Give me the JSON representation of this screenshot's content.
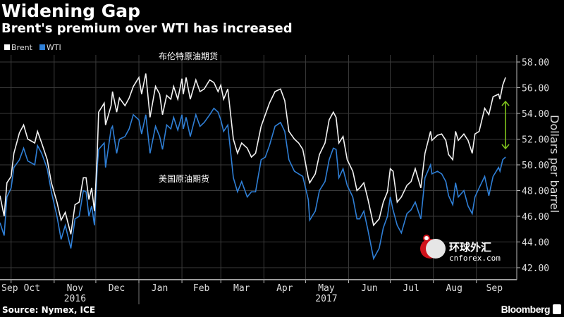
{
  "header": {
    "title": "Widening Gap",
    "subtitle": "Brent's premium over WTI has increased"
  },
  "footer": {
    "source": "Source: Nymex, ICE",
    "brand": "Bloomberg"
  },
  "annotations": {
    "brent_cn": "布伦特原油期货",
    "wti_cn": "美国原油期货"
  },
  "watermark": {
    "cn": "环球外汇",
    "en": "cnforex.com"
  },
  "colors": {
    "brent": "#ffffff",
    "wti": "#2f7fd6",
    "gap_arrow": "#7fc31c",
    "grid": "#3a3a3a",
    "background": "#000000"
  },
  "chart_data": {
    "type": "line",
    "title": "Widening Gap",
    "subtitle": "Brent's premium over WTI has increased",
    "ylabel": "Dollars per barrel",
    "xlabel": "",
    "ylim": [
      42,
      58
    ],
    "y_ticks": [
      "42.00",
      "44.00",
      "46.00",
      "48.00",
      "50.00",
      "52.00",
      "54.00",
      "56.00",
      "58.00"
    ],
    "y_axis_side": "right",
    "x_ticks": [
      "Sep",
      "Oct",
      "Nov",
      "Dec",
      "Jan",
      "Feb",
      "Mar",
      "Apr",
      "May",
      "Jun",
      "Jul",
      "Aug",
      "Sep"
    ],
    "x_years": [
      "2016",
      "2017"
    ],
    "xlim": [
      "2016-09-23",
      "2017-09-22"
    ],
    "grid": true,
    "legend": "top-left",
    "x": [
      "2016-09-23",
      "2016-09-26",
      "2016-09-28",
      "2016-10-01",
      "2016-10-03",
      "2016-10-07",
      "2016-10-10",
      "2016-10-13",
      "2016-10-18",
      "2016-10-20",
      "2016-10-23",
      "2016-10-27",
      "2016-10-30",
      "2016-11-03",
      "2016-11-06",
      "2016-11-09",
      "2016-11-13",
      "2016-11-16",
      "2016-11-19",
      "2016-11-22",
      "2016-11-24",
      "2016-11-26",
      "2016-11-28",
      "2016-11-30",
      "2016-12-02",
      "2016-12-03",
      "2016-12-07",
      "2016-12-08",
      "2016-12-12",
      "2016-12-13",
      "2016-12-16",
      "2016-12-18",
      "2016-12-22",
      "2016-12-25",
      "2016-12-28",
      "2017-01-01",
      "2017-01-03",
      "2017-01-06",
      "2017-01-09",
      "2017-01-13",
      "2017-01-16",
      "2017-01-18",
      "2017-01-21",
      "2017-01-24",
      "2017-01-26",
      "2017-01-29",
      "2017-02-01",
      "2017-02-02",
      "2017-02-04",
      "2017-02-07",
      "2017-02-11",
      "2017-02-14",
      "2017-02-17",
      "2017-02-21",
      "2017-02-24",
      "2017-02-27",
      "2017-03-01",
      "2017-03-03",
      "2017-03-06",
      "2017-03-10",
      "2017-03-13",
      "2017-03-16",
      "2017-03-20",
      "2017-03-23",
      "2017-03-26",
      "2017-03-30",
      "2017-04-02",
      "2017-04-05",
      "2017-04-09",
      "2017-04-13",
      "2017-04-16",
      "2017-04-19",
      "2017-04-23",
      "2017-04-26",
      "2017-04-29",
      "2017-05-03",
      "2017-05-04",
      "2017-05-08",
      "2017-05-11",
      "2017-05-15",
      "2017-05-18",
      "2017-05-21",
      "2017-05-23",
      "2017-05-25",
      "2017-05-28",
      "2017-05-31",
      "2017-06-04",
      "2017-06-07",
      "2017-06-09",
      "2017-06-12",
      "2017-06-15",
      "2017-06-19",
      "2017-06-23",
      "2017-06-26",
      "2017-06-29",
      "2017-07-01",
      "2017-07-03",
      "2017-07-06",
      "2017-07-09",
      "2017-07-13",
      "2017-07-16",
      "2017-07-19",
      "2017-07-23",
      "2017-07-26",
      "2017-07-30",
      "2017-07-31",
      "2017-08-04",
      "2017-08-07",
      "2017-08-10",
      "2017-08-12",
      "2017-08-15",
      "2017-08-17",
      "2017-08-19",
      "2017-08-23",
      "2017-08-26",
      "2017-08-29",
      "2017-08-31",
      "2017-09-03",
      "2017-09-07",
      "2017-09-10",
      "2017-09-13",
      "2017-09-17",
      "2017-09-18",
      "2017-09-20",
      "2017-09-22"
    ],
    "series": [
      {
        "name": "Brent",
        "values": [
          47.6,
          46.0,
          48.6,
          49.1,
          50.9,
          52.5,
          53.1,
          52.0,
          51.7,
          52.6,
          51.7,
          50.4,
          48.6,
          47.1,
          45.7,
          46.3,
          44.6,
          46.9,
          47.1,
          49.0,
          49.0,
          47.3,
          48.2,
          46.4,
          50.8,
          54.1,
          54.8,
          53.1,
          54.6,
          55.7,
          54.1,
          55.2,
          54.6,
          55.2,
          56.1,
          56.8,
          55.5,
          57.1,
          53.7,
          56.1,
          55.5,
          53.9,
          55.4,
          55.1,
          56.1,
          55.1,
          56.7,
          55.5,
          56.8,
          55.1,
          56.6,
          55.7,
          55.9,
          56.6,
          56.4,
          55.7,
          56.2,
          55.1,
          55.9,
          52.0,
          50.9,
          51.7,
          51.3,
          50.6,
          50.9,
          53.0,
          53.9,
          54.8,
          55.7,
          55.9,
          55.0,
          52.6,
          52.0,
          51.7,
          51.2,
          49.0,
          48.6,
          49.3,
          50.8,
          51.7,
          53.5,
          54.1,
          53.7,
          51.7,
          52.2,
          50.4,
          49.5,
          48.0,
          48.2,
          48.6,
          47.3,
          45.3,
          45.8,
          47.1,
          47.9,
          49.7,
          49.5,
          47.1,
          47.5,
          48.4,
          48.7,
          49.7,
          48.2,
          50.9,
          52.6,
          51.9,
          52.3,
          52.4,
          51.9,
          50.8,
          50.4,
          52.6,
          51.9,
          52.4,
          51.9,
          50.9,
          52.4,
          52.6,
          54.4,
          53.9,
          55.3,
          55.5,
          55.1,
          56.2,
          56.8
        ]
      },
      {
        "name": "WTI",
        "values": [
          45.5,
          44.5,
          47.5,
          48.2,
          49.8,
          50.4,
          51.3,
          50.3,
          50.0,
          51.5,
          50.9,
          49.7,
          47.9,
          46.0,
          44.2,
          45.3,
          43.5,
          45.8,
          46.0,
          48.0,
          47.9,
          46.0,
          46.8,
          45.3,
          49.8,
          51.2,
          51.7,
          49.8,
          52.8,
          53.0,
          50.9,
          52.0,
          52.2,
          52.8,
          53.9,
          53.5,
          52.4,
          53.9,
          50.9,
          53.0,
          52.2,
          51.2,
          53.1,
          52.8,
          53.7,
          52.7,
          53.9,
          52.8,
          53.7,
          52.2,
          53.9,
          53.0,
          53.3,
          53.9,
          54.4,
          54.1,
          53.5,
          52.6,
          53.1,
          49.0,
          47.9,
          48.7,
          47.5,
          47.9,
          47.9,
          50.4,
          50.6,
          51.5,
          53.0,
          53.3,
          52.6,
          50.4,
          49.5,
          49.3,
          49.1,
          47.3,
          45.7,
          46.4,
          48.0,
          48.7,
          50.4,
          51.3,
          51.2,
          49.0,
          49.7,
          48.4,
          47.5,
          45.8,
          45.8,
          46.4,
          44.9,
          42.7,
          43.5,
          45.1,
          46.0,
          47.5,
          46.5,
          45.3,
          44.7,
          46.2,
          46.5,
          47.1,
          45.8,
          49.0,
          50.0,
          49.3,
          49.5,
          49.3,
          48.7,
          47.6,
          46.9,
          48.6,
          47.5,
          48.0,
          46.8,
          46.2,
          47.5,
          48.2,
          49.1,
          47.6,
          49.1,
          49.8,
          49.5,
          50.4,
          50.6
        ]
      }
    ]
  }
}
